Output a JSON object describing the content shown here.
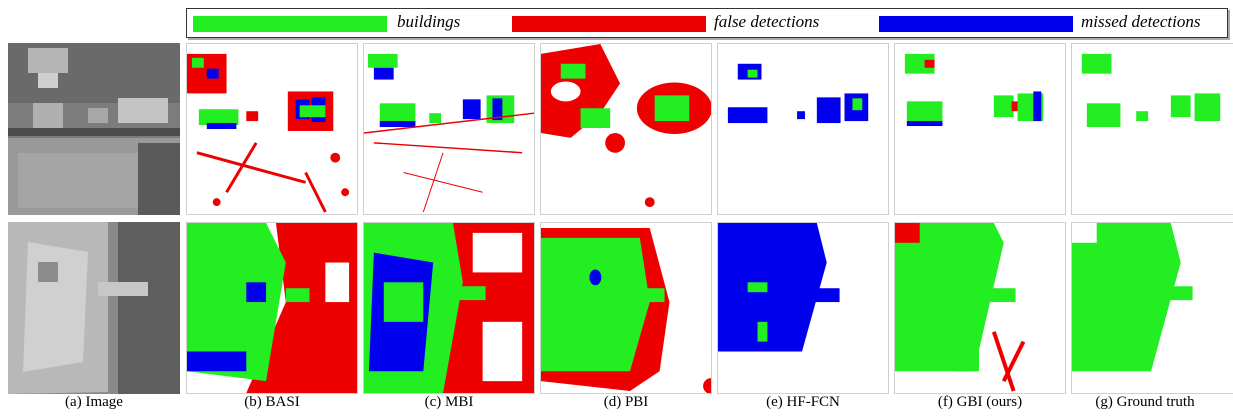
{
  "colors": {
    "buildings": "#22ee22",
    "false": "#ee0000",
    "missed": "#0000ee",
    "gray": "#8a8a8a"
  },
  "legend": {
    "buildings": "buildings",
    "false_detections": "false detections",
    "missed_detections": "missed detections"
  },
  "captions": [
    "(a) Image",
    "(b) BASI",
    "(c) MBI",
    "(d) PBI",
    "(e) HF-FCN",
    "(f) GBI (ours)",
    "(g) Ground truth"
  ]
}
